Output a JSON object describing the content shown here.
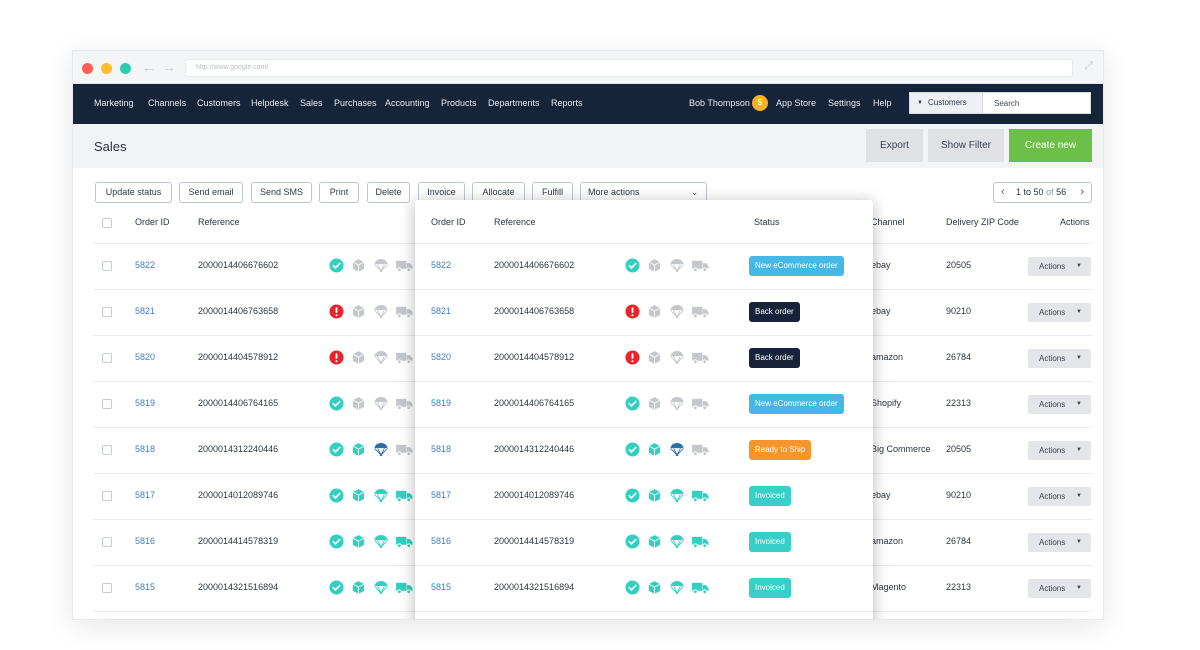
{
  "browser": {
    "url": "http://www.google.com/"
  },
  "nav": {
    "items": [
      "Marketing",
      "Channels",
      "Customers",
      "Helpdesk",
      "Sales",
      "Purchases",
      "Accounting",
      "Products",
      "Departments",
      "Reports"
    ],
    "user": "Bob Thompson",
    "user_badge": "5",
    "app_store": "App Store",
    "settings": "Settings",
    "help": "Help",
    "search_scope": "Customers",
    "search_placeholder": "Search"
  },
  "header": {
    "title": "Sales",
    "export": "Export",
    "show_filter": "Show Filter",
    "create_new": "Create new"
  },
  "toolbar": {
    "buttons": [
      "Update status",
      "Send email",
      "Send SMS",
      "Print",
      "Delete",
      "Invoice",
      "Allocate",
      "Fulfill"
    ],
    "more_actions": "More actions",
    "pager_range": "1 to 50",
    "pager_of": "of",
    "pager_total": "56"
  },
  "table": {
    "columns": {
      "order_id": "Order ID",
      "reference": "Reference",
      "status": "Status",
      "channel": "Channel",
      "zip": "Delivery ZIP Code",
      "actions": "Actions"
    },
    "action_label": "Actions",
    "rows": [
      {
        "id": "5822",
        "ref": "2000014406676602",
        "status": "New eCommerce order",
        "status_kind": "ecom",
        "channel": "ebay",
        "zip": "20505",
        "icons": [
          "check",
          "box-grey",
          "parachute-grey",
          "truck-grey"
        ]
      },
      {
        "id": "5821",
        "ref": "2000014406763658",
        "status": "Back order",
        "status_kind": "back",
        "channel": "ebay",
        "zip": "90210",
        "icons": [
          "alert",
          "box-grey",
          "parachute-grey",
          "truck-grey"
        ]
      },
      {
        "id": "5820",
        "ref": "2000014404578912",
        "status": "Back order",
        "status_kind": "back",
        "channel": "amazon",
        "zip": "26784",
        "icons": [
          "alert",
          "box-grey",
          "parachute-grey",
          "truck-grey"
        ]
      },
      {
        "id": "5819",
        "ref": "2000014406764165",
        "status": "New eCommerce order",
        "status_kind": "ecom",
        "channel": "Shopify",
        "zip": "22313",
        "icons": [
          "check",
          "box-grey",
          "parachute-grey",
          "truck-grey"
        ]
      },
      {
        "id": "5818",
        "ref": "2000014312240446",
        "status": "Ready to Ship",
        "status_kind": "ship",
        "channel": "Big Commerce",
        "zip": "20505",
        "icons": [
          "check",
          "box-teal",
          "parachute-blue",
          "truck-grey"
        ]
      },
      {
        "id": "5817",
        "ref": "2000014012089746",
        "status": "Invoiced",
        "status_kind": "inv",
        "channel": "ebay",
        "zip": "90210",
        "icons": [
          "check",
          "box-teal",
          "parachute-teal",
          "truck-teal"
        ]
      },
      {
        "id": "5816",
        "ref": "2000014414578319",
        "status": "Invoiced",
        "status_kind": "inv",
        "channel": "amazon",
        "zip": "26784",
        "icons": [
          "check",
          "box-teal",
          "parachute-teal",
          "truck-teal"
        ]
      },
      {
        "id": "5815",
        "ref": "2000014321516894",
        "status": "Invoiced",
        "status_kind": "inv",
        "channel": "Magento",
        "zip": "22313",
        "icons": [
          "check",
          "box-teal",
          "parachute-teal",
          "truck-teal"
        ]
      }
    ]
  },
  "colors": {
    "nav_bg": "#16243a",
    "accent_green": "#6cc04a",
    "link": "#3a7dc4",
    "teal": "#33cfc0",
    "alert_red": "#e8242c",
    "icon_grey": "#c4c7cb",
    "parachute_blue": "#2a6ea8"
  }
}
